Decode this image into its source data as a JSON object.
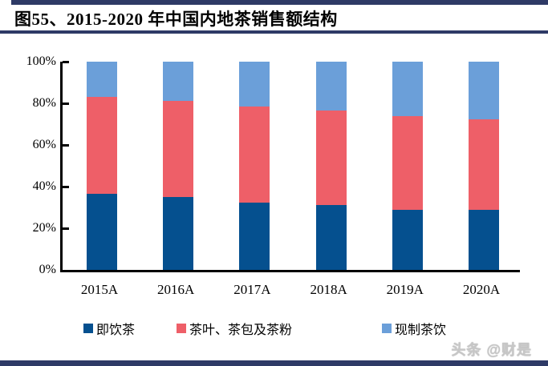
{
  "figure": {
    "title": "图55、2015-2020 年中国内地茶销售额结构"
  },
  "watermark": "头条 @财是",
  "colors": {
    "rule_navy": "#2e3a66",
    "axis_black": "#000000",
    "series_ready_to_drink": "#05508f",
    "series_leaf_bag_powder": "#ee5f68",
    "series_freshly_made": "#6b9fd9"
  },
  "chart_data": {
    "type": "bar",
    "stacked": true,
    "title": "图55、2015-2020 年中国内地茶销售额结构",
    "categories": [
      "2015A",
      "2016A",
      "2017A",
      "2018A",
      "2019A",
      "2020A"
    ],
    "series": [
      {
        "name": "即饮茶",
        "color": "#05508f",
        "values": [
          36.5,
          35.0,
          32.5,
          31.0,
          29.0,
          29.0
        ]
      },
      {
        "name": "茶叶、茶包及茶粉",
        "color": "#ee5f68",
        "values": [
          46.5,
          46.0,
          46.0,
          45.5,
          45.0,
          43.5
        ]
      },
      {
        "name": "现制茶饮",
        "color": "#6b9fd9",
        "values": [
          17.0,
          19.0,
          21.5,
          23.5,
          26.0,
          27.5
        ]
      }
    ],
    "xlabel": "",
    "ylabel": "",
    "ylim": [
      0,
      100
    ],
    "ytick_labels": [
      "0%",
      "20%",
      "40%",
      "60%",
      "80%",
      "100%"
    ],
    "grid": false,
    "legend_position": "bottom"
  }
}
